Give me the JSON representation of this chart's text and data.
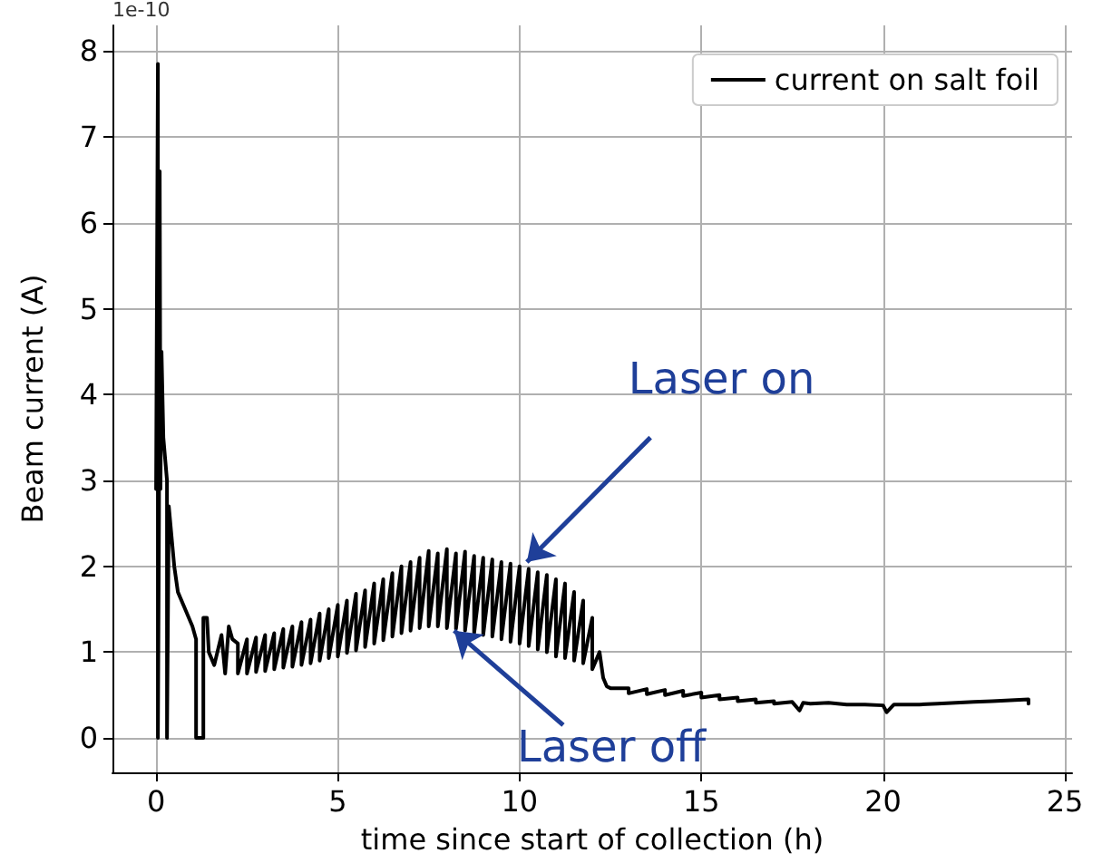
{
  "chart_data": {
    "type": "line",
    "xlabel": "time since start of collection (h)",
    "ylabel": "Beam current (A)",
    "xlim": [
      -1.2,
      25.2
    ],
    "xticks": [
      0,
      5,
      10,
      15,
      20,
      25
    ],
    "ylim": [
      -0.4,
      8.3
    ],
    "yticks": [
      0,
      1,
      2,
      3,
      4,
      5,
      6,
      7,
      8
    ],
    "grid": true,
    "legend": "top right",
    "marker": "none",
    "line_style": "solid",
    "annotations": [
      "1e-10",
      {
        "text": "Laser on",
        "x": 10.2,
        "y": 2.05
      },
      {
        "text": "Laser off",
        "x": 8.2,
        "y": 1.25
      }
    ],
    "series": [
      {
        "name": "current on salt foil",
        "color": "#000000",
        "x": [
          0,
          0.05,
          0.05,
          0.08,
          0.1,
          0.12,
          0.15,
          0.2,
          0.3,
          0.3,
          0.35,
          0.5,
          0.6,
          0.8,
          1.0,
          1.1,
          1.1,
          1.3,
          1.3,
          1.4,
          1.45,
          1.6,
          1.8,
          1.9,
          2.0,
          2.1,
          2.25,
          2.25,
          2.5,
          2.5,
          2.75,
          2.75,
          3,
          3,
          3.25,
          3.25,
          3.5,
          3.5,
          3.75,
          3.75,
          4,
          4,
          4.25,
          4.25,
          4.5,
          4.5,
          4.75,
          4.75,
          5,
          5,
          5.25,
          5.25,
          5.5,
          5.5,
          5.75,
          5.75,
          6,
          6,
          6.25,
          6.25,
          6.5,
          6.5,
          6.75,
          6.75,
          7,
          7,
          7.25,
          7.25,
          7.5,
          7.5,
          7.75,
          7.75,
          8,
          8,
          8.25,
          8.25,
          8.5,
          8.5,
          8.75,
          8.75,
          9,
          9,
          9.25,
          9.25,
          9.5,
          9.5,
          9.75,
          9.75,
          10,
          10,
          10.25,
          10.25,
          10.5,
          10.5,
          10.75,
          10.75,
          11,
          11,
          11.25,
          11.25,
          11.5,
          11.5,
          11.75,
          11.75,
          12,
          12,
          12.2,
          12.3,
          12.4,
          12.5,
          13,
          13,
          13.5,
          13.5,
          14,
          14,
          14.5,
          14.5,
          15,
          15,
          15.5,
          15.5,
          16,
          16,
          16.5,
          16.5,
          17,
          17,
          17.5,
          17.7,
          17.8,
          18,
          18.5,
          19,
          19.5,
          20,
          20.1,
          20.3,
          21,
          21.5,
          22,
          22.5,
          23,
          23.5,
          24,
          24
        ],
        "values": [
          2.9,
          7.85,
          0,
          2.6,
          6.6,
          2.9,
          4.5,
          3.5,
          3.0,
          0,
          2.7,
          2.0,
          1.7,
          1.5,
          1.3,
          1.15,
          0,
          0,
          1.4,
          1.4,
          1.0,
          0.85,
          1.2,
          0.75,
          1.3,
          1.15,
          1.1,
          0.75,
          1.15,
          0.75,
          1.17,
          0.77,
          1.2,
          0.78,
          1.22,
          0.8,
          1.27,
          0.82,
          1.3,
          0.83,
          1.35,
          0.85,
          1.38,
          0.87,
          1.45,
          0.9,
          1.5,
          0.93,
          1.55,
          0.95,
          1.6,
          0.99,
          1.68,
          1.02,
          1.72,
          1.06,
          1.8,
          1.1,
          1.85,
          1.14,
          1.92,
          1.18,
          2.0,
          1.22,
          2.05,
          1.25,
          2.1,
          1.28,
          2.18,
          1.3,
          2.15,
          1.3,
          2.2,
          1.28,
          2.15,
          1.27,
          2.17,
          1.25,
          2.12,
          1.22,
          2.1,
          1.2,
          2.08,
          1.18,
          2.05,
          1.15,
          2.03,
          1.12,
          2.0,
          1.1,
          1.97,
          1.07,
          1.93,
          1.03,
          1.9,
          1.0,
          1.85,
          0.95,
          1.8,
          0.93,
          1.7,
          0.9,
          1.6,
          0.87,
          1.4,
          0.8,
          1.0,
          0.7,
          0.6,
          0.58,
          0.58,
          0.52,
          0.57,
          0.51,
          0.56,
          0.5,
          0.55,
          0.49,
          0.53,
          0.47,
          0.5,
          0.45,
          0.47,
          0.43,
          0.45,
          0.41,
          0.43,
          0.4,
          0.42,
          0.32,
          0.41,
          0.4,
          0.41,
          0.39,
          0.39,
          0.38,
          0.3,
          0.39,
          0.39,
          0.4,
          0.41,
          0.42,
          0.43,
          0.44,
          0.45,
          0.4
        ]
      }
    ]
  }
}
